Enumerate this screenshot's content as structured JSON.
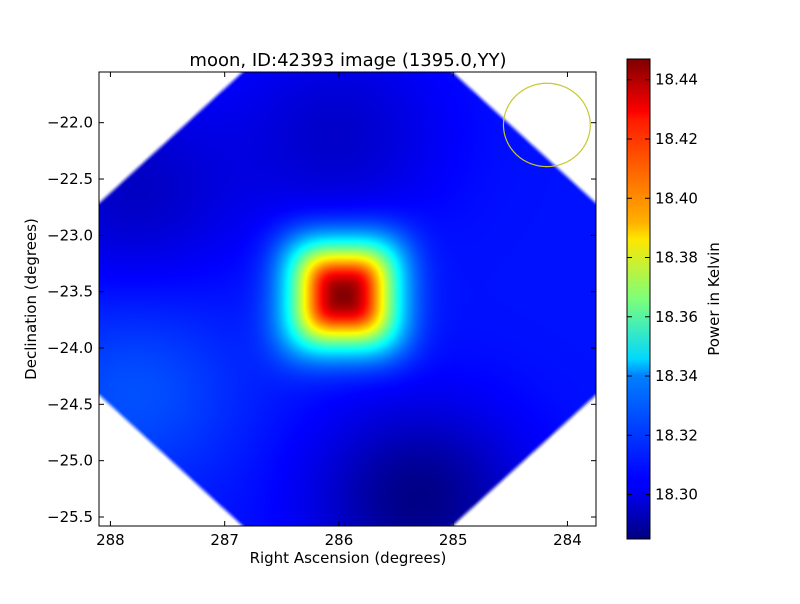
{
  "chart_data": {
    "type": "heatmap",
    "title": "moon, ID:42393 image (1395.0,YY)",
    "xlabel": "Right Ascension (degrees)",
    "ylabel": "Declination (degrees)",
    "xlim": [
      288.1,
      283.75
    ],
    "ylim": [
      -25.58,
      -21.55
    ],
    "x_ticks": [
      288,
      287,
      286,
      285,
      284
    ],
    "x_tick_labels": [
      "288",
      "287",
      "286",
      "285",
      "284"
    ],
    "y_ticks": [
      -22.0,
      -22.5,
      -23.0,
      -23.5,
      -24.0,
      -24.5,
      -25.0,
      -25.5
    ],
    "y_tick_labels": [
      "−22.0",
      "−22.5",
      "−23.0",
      "−23.5",
      "−24.0",
      "−24.5",
      "−25.0",
      "−25.5"
    ],
    "colormap": "jet",
    "colorbar": {
      "label": "Power in Kelvin",
      "min": 18.285,
      "max": 18.447,
      "ticks": [
        18.3,
        18.32,
        18.34,
        18.36,
        18.38,
        18.4,
        18.42,
        18.44
      ],
      "tick_labels": [
        "18.30",
        "18.32",
        "18.34",
        "18.36",
        "18.38",
        "18.40",
        "18.42",
        "18.44"
      ]
    },
    "background_level": 18.308,
    "features": [
      {
        "kind": "peak",
        "ra": 285.96,
        "dec": -23.53,
        "value": 18.447,
        "half_width_ra": 0.42,
        "half_width_dec": 0.42
      },
      {
        "kind": "trough",
        "ra": 285.3,
        "dec": -25.35,
        "value": 18.286
      },
      {
        "kind": "trough",
        "ra": 287.8,
        "dec": -22.6,
        "value": 18.296
      },
      {
        "kind": "trough",
        "ra": 286.0,
        "dec": -22.1,
        "value": 18.297
      },
      {
        "kind": "bump",
        "ra": 287.8,
        "dec": -24.4,
        "value": 18.318
      }
    ],
    "beam": {
      "ra": 284.18,
      "dec": -22.02,
      "radius_ra": 0.38,
      "radius_dec": 0.37,
      "color": "#c8c832"
    }
  }
}
